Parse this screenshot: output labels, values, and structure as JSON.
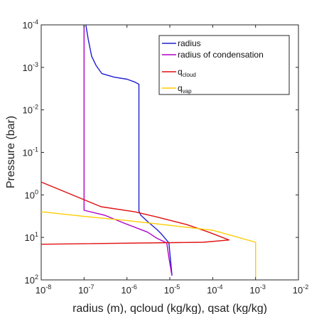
{
  "chart_data": {
    "type": "line",
    "xlabel": "radius (m), qcloud (kg/kg), qsat (kg/kg)",
    "ylabel": "Pressure (bar)",
    "xscale": "log",
    "yscale": "log",
    "yreverse": true,
    "xlim": [
      1e-08,
      0.01
    ],
    "ylim": [
      0.0001,
      100.0
    ],
    "grid": false,
    "legend_position": "top-right",
    "x_ticks": [
      {
        "base": "10",
        "exp": "-8"
      },
      {
        "base": "10",
        "exp": "-7"
      },
      {
        "base": "10",
        "exp": "-6"
      },
      {
        "base": "10",
        "exp": "-5"
      },
      {
        "base": "10",
        "exp": "-4"
      },
      {
        "base": "10",
        "exp": "-3"
      },
      {
        "base": "10",
        "exp": "-2"
      }
    ],
    "y_ticks": [
      {
        "base": "10",
        "exp": "-4"
      },
      {
        "base": "10",
        "exp": "-3"
      },
      {
        "base": "10",
        "exp": "-2"
      },
      {
        "base": "10",
        "exp": "-1"
      },
      {
        "base": "10",
        "exp": "0"
      },
      {
        "base": "10",
        "exp": "1"
      },
      {
        "base": "10",
        "exp": "2"
      }
    ],
    "series": [
      {
        "name": "radius",
        "name_sub": "",
        "color": "#1f1fd0",
        "points": [
          [
            1.1e-07,
            0.0001
          ],
          [
            1.25e-07,
            0.00022
          ],
          [
            1.5e-07,
            0.00055
          ],
          [
            1.9e-07,
            0.0009
          ],
          [
            2.6e-07,
            0.0014
          ],
          [
            5e-07,
            0.0017
          ],
          [
            1e-06,
            0.0019
          ],
          [
            1.5e-06,
            0.0022
          ],
          [
            1.9e-06,
            0.0025
          ],
          [
            1.9e-06,
            2.4
          ],
          [
            2.1e-06,
            3.0
          ],
          [
            3e-06,
            4.2
          ],
          [
            5e-06,
            6.5
          ],
          [
            6.5e-06,
            8.5
          ],
          [
            8e-06,
            11.0
          ],
          [
            9.5e-06,
            13.5
          ],
          [
            1.12e-05,
            77
          ]
        ]
      },
      {
        "name": "radius of condensation",
        "name_sub": "",
        "color": "#b000c8",
        "points": [
          [
            1e-07,
            0.0001
          ],
          [
            1e-07,
            2.3
          ],
          [
            3e-07,
            3.0
          ],
          [
            8e-07,
            4.5
          ],
          [
            3e-06,
            7.5
          ],
          [
            5e-06,
            10.5
          ],
          [
            8.5e-06,
            13.5
          ],
          [
            9.5e-06,
            30
          ],
          [
            1.12e-05,
            80
          ]
        ]
      },
      {
        "name": "q",
        "name_sub": "cloud",
        "color": "#e01010",
        "points": [
          [
            1e-08,
            0.5
          ],
          [
            2.5e-07,
            1.9
          ],
          [
            1.5e-06,
            2.5
          ],
          [
            5e-06,
            3.3
          ],
          [
            2.5e-05,
            5.0
          ],
          [
            8e-05,
            7.5
          ],
          [
            0.00024,
            11.5
          ],
          [
            6e-05,
            13.0
          ],
          [
            1e-08,
            14.5
          ]
        ]
      },
      {
        "name": "q",
        "name_sub": "vap",
        "color": "#ffcc00",
        "points": [
          [
            1e-08,
            2.5
          ],
          [
            1e-07,
            3.2
          ],
          [
            1e-06,
            4.0
          ],
          [
            1e-05,
            5.2
          ],
          [
            0.0001,
            6.8
          ],
          [
            0.001,
            13.0
          ],
          [
            0.001,
            90
          ]
        ]
      }
    ]
  }
}
